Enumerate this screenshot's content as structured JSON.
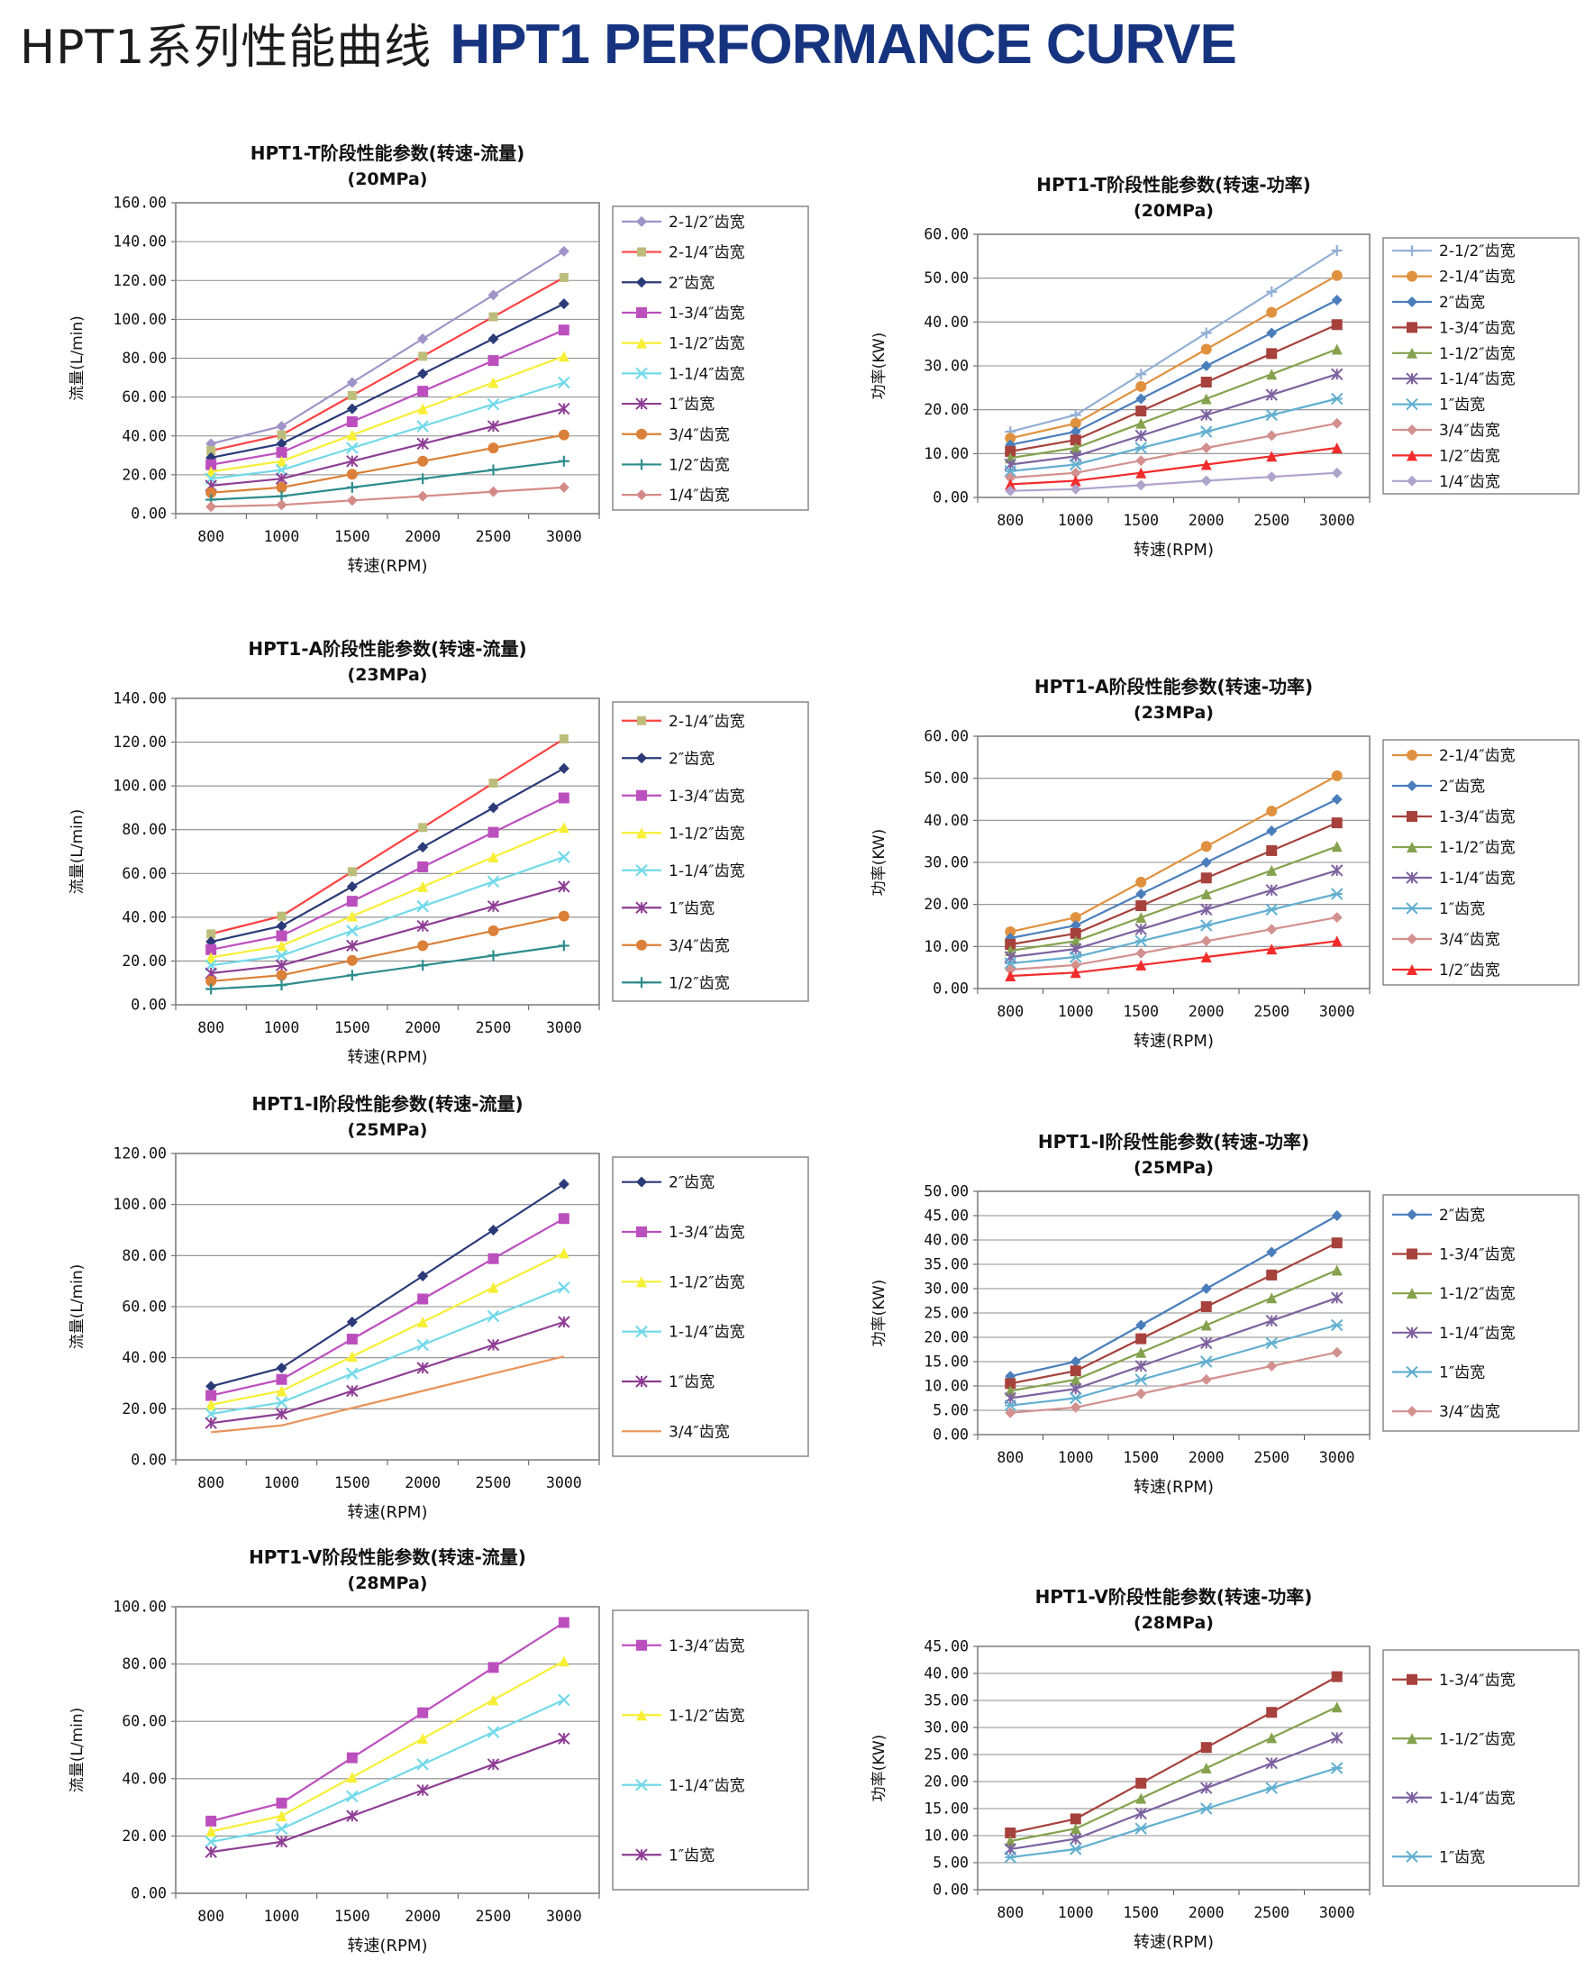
{
  "header": {
    "title_zh": "HPT1系列性能曲线",
    "title_en": "HPT1 PERFORMANCE CURVE",
    "accent_color": "#16337f"
  },
  "chart_data": [
    {
      "id": "hpt1-t-flow",
      "type": "line",
      "title": "HPT1-T阶段性能参数(转速-流量)",
      "subtitle": "(20MPa)",
      "xlabel": "转速(RPM)",
      "ylabel": "流量(L/min)",
      "x_categories": [
        "800",
        "1000",
        "1500",
        "2000",
        "2500",
        "3000"
      ],
      "ylim": [
        0,
        160
      ],
      "ystep": 20,
      "grid": true,
      "legend_position": "right",
      "series": [
        {
          "name": "2-1/2″齿宽",
          "color": "#a093c8",
          "marker": "diamond",
          "values": [
            36,
            45,
            67.5,
            90,
            112.5,
            135
          ]
        },
        {
          "name": "2-1/4″齿宽",
          "color": "#ff4242",
          "marker": "square",
          "marker_color": "#bdbd7b",
          "marker_size": 5,
          "values": [
            32.4,
            40.5,
            60.8,
            81,
            101.3,
            121.5
          ]
        },
        {
          "name": "2″齿宽",
          "color": "#2b3a78",
          "marker": "diamond",
          "values": [
            28.8,
            36,
            54,
            72,
            90,
            108
          ]
        },
        {
          "name": "1-3/4″齿宽",
          "color": "#bc4fbe",
          "marker": "square",
          "values": [
            25.2,
            31.5,
            47.3,
            63,
            78.8,
            94.5
          ]
        },
        {
          "name": "1-1/2″齿宽",
          "color": "#f7ef36",
          "marker": "triangle",
          "values": [
            21.6,
            27,
            40.5,
            54,
            67.5,
            81
          ]
        },
        {
          "name": "1-1/4″齿宽",
          "color": "#72d9e9",
          "marker": "x",
          "values": [
            18,
            22.5,
            33.8,
            45,
            56.3,
            67.5
          ]
        },
        {
          "name": "1″齿宽",
          "color": "#8e3d94",
          "marker": "star",
          "values": [
            14.4,
            18,
            27,
            36,
            45,
            54
          ]
        },
        {
          "name": "3/4″齿宽",
          "color": "#db8038",
          "marker": "circle",
          "values": [
            10.8,
            13.5,
            20.3,
            27,
            33.8,
            40.5
          ]
        },
        {
          "name": "1/2″齿宽",
          "color": "#2d8c8c",
          "marker": "plus",
          "values": [
            7.2,
            9,
            13.5,
            18,
            22.5,
            27
          ]
        },
        {
          "name": "1/4″齿宽",
          "color": "#d48b87",
          "marker": "diamond",
          "values": [
            3.6,
            4.5,
            6.8,
            9,
            11.3,
            13.5
          ]
        }
      ]
    },
    {
      "id": "hpt1-t-power",
      "type": "line",
      "title": "HPT1-T阶段性能参数(转速-功率)",
      "subtitle": "(20MPa)",
      "xlabel": "转速(RPM)",
      "ylabel": "功率(KW)",
      "x_categories": [
        "800",
        "1000",
        "1500",
        "2000",
        "2500",
        "3000"
      ],
      "ylim": [
        0,
        60
      ],
      "ystep": 10,
      "grid": true,
      "legend_position": "right",
      "series": [
        {
          "name": "2-1/2″齿宽",
          "color": "#92afd5",
          "marker": "plus",
          "values": [
            15,
            18.8,
            28.1,
            37.5,
            46.9,
            56.3
          ]
        },
        {
          "name": "2-1/4″齿宽",
          "color": "#e0913f",
          "marker": "circle",
          "values": [
            13.5,
            16.9,
            25.3,
            33.8,
            42.2,
            50.6
          ]
        },
        {
          "name": "2″齿宽",
          "color": "#4a7ebb",
          "marker": "diamond",
          "values": [
            12,
            15,
            22.5,
            30,
            37.5,
            45
          ]
        },
        {
          "name": "1-3/4″齿宽",
          "color": "#a6413c",
          "marker": "square",
          "values": [
            10.5,
            13.1,
            19.7,
            26.3,
            32.8,
            39.4
          ]
        },
        {
          "name": "1-1/2″齿宽",
          "color": "#84a24d",
          "marker": "triangle",
          "values": [
            9,
            11.3,
            16.9,
            22.5,
            28.1,
            33.8
          ]
        },
        {
          "name": "1-1/4″齿宽",
          "color": "#7d62a0",
          "marker": "star",
          "values": [
            7.5,
            9.4,
            14.1,
            18.8,
            23.4,
            28.1
          ]
        },
        {
          "name": "1″齿宽",
          "color": "#62afd0",
          "marker": "xstar",
          "values": [
            6,
            7.5,
            11.3,
            15,
            18.8,
            22.5
          ]
        },
        {
          "name": "3/4″齿宽",
          "color": "#d2908e",
          "marker": "diamond",
          "values": [
            4.5,
            5.6,
            8.4,
            11.3,
            14.1,
            16.9
          ]
        },
        {
          "name": "1/2″齿宽",
          "color": "#f22b2b",
          "marker": "triangle",
          "values": [
            3,
            3.8,
            5.6,
            7.5,
            9.4,
            11.3
          ]
        },
        {
          "name": "1/4″齿宽",
          "color": "#afa3cc",
          "marker": "diamond",
          "values": [
            1.5,
            1.9,
            2.8,
            3.8,
            4.7,
            5.6
          ]
        }
      ]
    },
    {
      "id": "hpt1-a-flow",
      "type": "line",
      "title": "HPT1-A阶段性能参数(转速-流量)",
      "subtitle": "(23MPa)",
      "xlabel": "转速(RPM)",
      "ylabel": "流量(L/min)",
      "x_categories": [
        "800",
        "1000",
        "1500",
        "2000",
        "2500",
        "3000"
      ],
      "ylim": [
        0,
        140
      ],
      "ystep": 20,
      "grid": true,
      "legend_position": "right",
      "series": [
        {
          "name": "2-1/4″齿宽",
          "color": "#ff4242",
          "marker": "square",
          "marker_color": "#bdbd7b",
          "marker_size": 5,
          "values": [
            32.4,
            40.5,
            60.8,
            81,
            101.3,
            121.5
          ]
        },
        {
          "name": "2″齿宽",
          "color": "#2b3a78",
          "marker": "diamond",
          "values": [
            28.8,
            36,
            54,
            72,
            90,
            108
          ]
        },
        {
          "name": "1-3/4″齿宽",
          "color": "#bc4fbe",
          "marker": "square",
          "values": [
            25.2,
            31.5,
            47.3,
            63,
            78.8,
            94.5
          ]
        },
        {
          "name": "1-1/2″齿宽",
          "color": "#f7ef36",
          "marker": "triangle",
          "values": [
            21.6,
            27,
            40.5,
            54,
            67.5,
            81
          ]
        },
        {
          "name": "1-1/4″齿宽",
          "color": "#72d9e9",
          "marker": "x",
          "values": [
            18,
            22.5,
            33.8,
            45,
            56.3,
            67.5
          ]
        },
        {
          "name": "1″齿宽",
          "color": "#8e3d94",
          "marker": "star",
          "values": [
            14.4,
            18,
            27,
            36,
            45,
            54
          ]
        },
        {
          "name": "3/4″齿宽",
          "color": "#db8038",
          "marker": "circle",
          "values": [
            10.8,
            13.5,
            20.3,
            27,
            33.8,
            40.5
          ]
        },
        {
          "name": "1/2″齿宽",
          "color": "#2d8c8c",
          "marker": "plus",
          "values": [
            7.2,
            9,
            13.5,
            18,
            22.5,
            27
          ]
        }
      ]
    },
    {
      "id": "hpt1-a-power",
      "type": "line",
      "title": "HPT1-A阶段性能参数(转速-功率)",
      "subtitle": "(23MPa)",
      "xlabel": "转速(RPM)",
      "ylabel": "功率(KW)",
      "x_categories": [
        "800",
        "1000",
        "1500",
        "2000",
        "2500",
        "3000"
      ],
      "ylim": [
        0,
        60
      ],
      "ystep": 10,
      "grid": true,
      "legend_position": "right",
      "series": [
        {
          "name": "2-1/4″齿宽",
          "color": "#e0913f",
          "marker": "circle",
          "values": [
            13.5,
            16.9,
            25.3,
            33.8,
            42.2,
            50.6
          ]
        },
        {
          "name": "2″齿宽",
          "color": "#4a7ebb",
          "marker": "diamond",
          "values": [
            12,
            15,
            22.5,
            30,
            37.5,
            45
          ]
        },
        {
          "name": "1-3/4″齿宽",
          "color": "#a6413c",
          "marker": "square",
          "values": [
            10.5,
            13.1,
            19.7,
            26.3,
            32.8,
            39.4
          ]
        },
        {
          "name": "1-1/2″齿宽",
          "color": "#84a24d",
          "marker": "triangle",
          "values": [
            9,
            11.3,
            16.9,
            22.5,
            28.1,
            33.8
          ]
        },
        {
          "name": "1-1/4″齿宽",
          "color": "#7d62a0",
          "marker": "star",
          "values": [
            7.5,
            9.4,
            14.1,
            18.8,
            23.4,
            28.1
          ]
        },
        {
          "name": "1″齿宽",
          "color": "#62afd0",
          "marker": "xstar",
          "values": [
            6,
            7.5,
            11.3,
            15,
            18.8,
            22.5
          ]
        },
        {
          "name": "3/4″齿宽",
          "color": "#d2908e",
          "marker": "diamond",
          "values": [
            4.5,
            5.6,
            8.4,
            11.3,
            14.1,
            16.9
          ]
        },
        {
          "name": "1/2″齿宽",
          "color": "#f22b2b",
          "marker": "triangle",
          "values": [
            3,
            3.8,
            5.6,
            7.5,
            9.4,
            11.3
          ]
        }
      ]
    },
    {
      "id": "hpt1-i-flow",
      "type": "line",
      "title": "HPT1-I阶段性能参数(转速-流量)",
      "subtitle": "(25MPa)",
      "xlabel": "转速(RPM)",
      "ylabel": "流量(L/min)",
      "x_categories": [
        "800",
        "1000",
        "1500",
        "2000",
        "2500",
        "3000"
      ],
      "ylim": [
        0,
        120
      ],
      "ystep": 20,
      "grid": true,
      "legend_position": "right",
      "series": [
        {
          "name": "2″齿宽",
          "color": "#2b3a78",
          "marker": "diamond",
          "values": [
            28.8,
            36,
            54,
            72,
            90,
            108
          ]
        },
        {
          "name": "1-3/4″齿宽",
          "color": "#bc4fbe",
          "marker": "square",
          "values": [
            25.2,
            31.5,
            47.3,
            63,
            78.8,
            94.5
          ]
        },
        {
          "name": "1-1/2″齿宽",
          "color": "#f7ef36",
          "marker": "triangle",
          "values": [
            21.6,
            27,
            40.5,
            54,
            67.5,
            81
          ]
        },
        {
          "name": "1-1/4″齿宽",
          "color": "#72d9e9",
          "marker": "x",
          "values": [
            18,
            22.5,
            33.8,
            45,
            56.3,
            67.5
          ]
        },
        {
          "name": "1″齿宽",
          "color": "#8e3d94",
          "marker": "star",
          "values": [
            14.4,
            18,
            27,
            36,
            45,
            54
          ]
        },
        {
          "name": "3/4″齿宽",
          "color": "#e8935a",
          "marker": "none",
          "values": [
            10.8,
            13.5,
            20.3,
            27,
            33.8,
            40.5
          ]
        }
      ]
    },
    {
      "id": "hpt1-i-power",
      "type": "line",
      "title": "HPT1-I阶段性能参数(转速-功率)",
      "subtitle": "(25MPa)",
      "xlabel": "转速(RPM)",
      "ylabel": "功率(KW)",
      "x_categories": [
        "800",
        "1000",
        "1500",
        "2000",
        "2500",
        "3000"
      ],
      "ylim": [
        0,
        50
      ],
      "ystep": 5,
      "grid": true,
      "legend_position": "right",
      "series": [
        {
          "name": "2″齿宽",
          "color": "#4a7ebb",
          "marker": "diamond",
          "values": [
            12,
            15,
            22.5,
            30,
            37.5,
            45
          ]
        },
        {
          "name": "1-3/4″齿宽",
          "color": "#a6413c",
          "marker": "square",
          "values": [
            10.5,
            13.1,
            19.7,
            26.3,
            32.8,
            39.4
          ]
        },
        {
          "name": "1-1/2″齿宽",
          "color": "#84a24d",
          "marker": "triangle",
          "values": [
            9,
            11.3,
            16.9,
            22.5,
            28.1,
            33.8
          ]
        },
        {
          "name": "1-1/4″齿宽",
          "color": "#7d62a0",
          "marker": "star",
          "values": [
            7.5,
            9.4,
            14.1,
            18.8,
            23.4,
            28.1
          ]
        },
        {
          "name": "1″齿宽",
          "color": "#62afd0",
          "marker": "xstar",
          "values": [
            6,
            7.5,
            11.3,
            15,
            18.8,
            22.5
          ]
        },
        {
          "name": "3/4″齿宽",
          "color": "#d2908e",
          "marker": "diamond",
          "values": [
            4.5,
            5.6,
            8.4,
            11.3,
            14.1,
            16.9
          ]
        }
      ]
    },
    {
      "id": "hpt1-v-flow",
      "type": "line",
      "title": "HPT1-V阶段性能参数(转速-流量)",
      "subtitle": "(28MPa)",
      "xlabel": "转速(RPM)",
      "ylabel": "流量(L/min)",
      "x_categories": [
        "800",
        "1000",
        "1500",
        "2000",
        "2500",
        "3000"
      ],
      "ylim": [
        0,
        100
      ],
      "ystep": 20,
      "grid": true,
      "legend_position": "right",
      "series": [
        {
          "name": "1-3/4″齿宽",
          "color": "#bc4fbe",
          "marker": "square",
          "values": [
            25.2,
            31.5,
            47.3,
            63,
            78.8,
            94.5
          ]
        },
        {
          "name": "1-1/2″齿宽",
          "color": "#f7ef36",
          "marker": "triangle",
          "values": [
            21.6,
            27,
            40.5,
            54,
            67.5,
            81
          ]
        },
        {
          "name": "1-1/4″齿宽",
          "color": "#72d9e9",
          "marker": "x",
          "values": [
            18,
            22.5,
            33.8,
            45,
            56.3,
            67.5
          ]
        },
        {
          "name": "1″齿宽",
          "color": "#8e3d94",
          "marker": "star",
          "values": [
            14.4,
            18,
            27,
            36,
            45,
            54
          ]
        }
      ]
    },
    {
      "id": "hpt1-v-power",
      "type": "line",
      "title": "HPT1-V阶段性能参数(转速-功率)",
      "subtitle": "(28MPa)",
      "xlabel": "转速(RPM)",
      "ylabel": "功率(KW)",
      "x_categories": [
        "800",
        "1000",
        "1500",
        "2000",
        "2500",
        "3000"
      ],
      "ylim": [
        0,
        45
      ],
      "ystep": 5,
      "grid": true,
      "legend_position": "right",
      "series": [
        {
          "name": "1-3/4″齿宽",
          "color": "#a6413c",
          "marker": "square",
          "values": [
            10.5,
            13.1,
            19.7,
            26.3,
            32.8,
            39.4
          ]
        },
        {
          "name": "1-1/2″齿宽",
          "color": "#84a24d",
          "marker": "triangle",
          "values": [
            9,
            11.3,
            16.9,
            22.5,
            28.1,
            33.8
          ]
        },
        {
          "name": "1-1/4″齿宽",
          "color": "#7d62a0",
          "marker": "star",
          "values": [
            7.5,
            9.4,
            14.1,
            18.8,
            23.4,
            28.1
          ]
        },
        {
          "name": "1″齿宽",
          "color": "#62afd0",
          "marker": "xstar",
          "values": [
            6,
            7.5,
            11.3,
            15,
            18.8,
            22.5
          ]
        }
      ]
    }
  ]
}
